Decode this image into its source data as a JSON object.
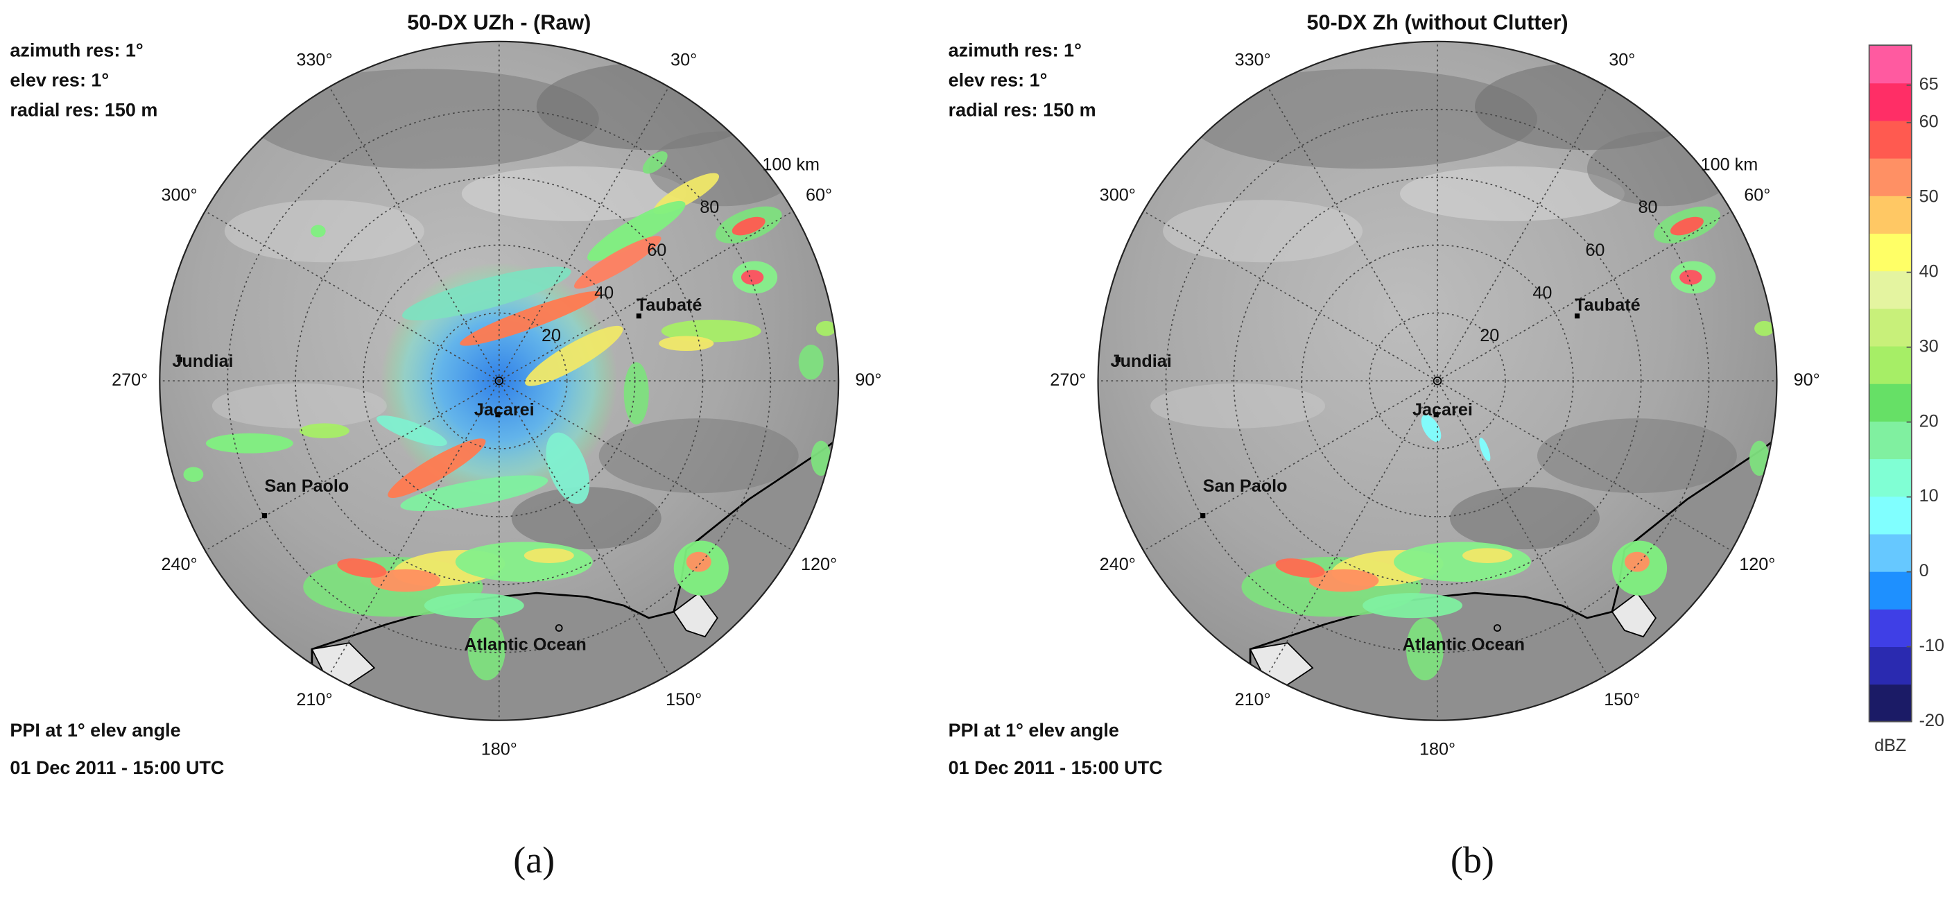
{
  "panels": [
    {
      "label": "(a)",
      "title": "50-DX UZh - (Raw)",
      "info": [
        "azimuth res: 1°",
        "elev res: 1°",
        "radial res: 150 m"
      ],
      "footer": [
        "PPI at 1° elev angle",
        "01 Dec 2011 - 15:00 UTC"
      ],
      "azimuth_labels": [
        "330°",
        "30°",
        "300°",
        "60°",
        "270°",
        "90°",
        "240°",
        "120°",
        "210°",
        "150°",
        "180°"
      ],
      "range_labels": [
        "20",
        "40",
        "60",
        "80",
        "100 km"
      ],
      "places": [
        "Jundiai",
        "San Paolo",
        "Taubaté",
        "Jacarei",
        "Atlantic Ocean"
      ]
    },
    {
      "label": "(b)",
      "title": "50-DX Zh (without Clutter)",
      "info": [
        "azimuth res: 1°",
        "elev res: 1°",
        "radial res: 150 m"
      ],
      "footer": [
        "PPI at 1° elev angle",
        "01 Dec 2011 - 15:00 UTC"
      ],
      "azimuth_labels": [
        "330°",
        "30°",
        "300°",
        "60°",
        "270°",
        "90°",
        "240°",
        "120°",
        "210°",
        "150°",
        "180°"
      ],
      "range_labels": [
        "20",
        "40",
        "60",
        "80",
        "100 km"
      ],
      "places": [
        "Jundiai",
        "San Paolo",
        "Taubaté",
        "Jacarei",
        "Atlantic Ocean"
      ]
    }
  ],
  "colorbar": {
    "ticks": [
      65,
      60,
      50,
      40,
      30,
      20,
      10,
      0,
      -10,
      -20
    ],
    "unit": "dBZ",
    "colors": [
      "#1b1b66",
      "#2a2ab0",
      "#3f3fe6",
      "#1e90ff",
      "#66c8ff",
      "#80ffff",
      "#80ffd4",
      "#80f0a0",
      "#66e066",
      "#a6ee66",
      "#c8f07a",
      "#e4f4a0",
      "#ffff66",
      "#ffc864",
      "#ff9064",
      "#ff5a50",
      "#ff2e66",
      "#ff5aa0"
    ]
  }
}
